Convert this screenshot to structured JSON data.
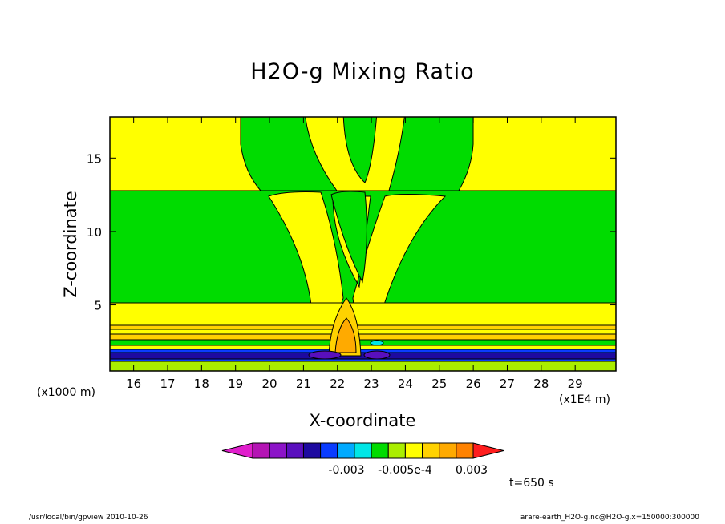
{
  "chart_data": {
    "type": "heatmap",
    "title": "H2O-g Mixing Ratio",
    "xlabel": "X-coordinate",
    "ylabel": "Z-coordinate",
    "x_unit": "(x1E4 m)",
    "y_unit": "(x1000 m)",
    "xlim": [
      15.3,
      30.2
    ],
    "ylim": [
      0.5,
      17.8
    ],
    "x_ticks": [
      16,
      17,
      18,
      19,
      20,
      21,
      22,
      23,
      24,
      25,
      26,
      27,
      28,
      29
    ],
    "y_ticks": [
      5,
      10,
      15
    ],
    "colorbar": {
      "colors": [
        "#e01fcc",
        "#b414b4",
        "#8c14c8",
        "#5a0fbe",
        "#1e0aa0",
        "#0a3cff",
        "#00aaff",
        "#00e6e6",
        "#00dc00",
        "#aaee00",
        "#ffff00",
        "#ffd200",
        "#ffaa00",
        "#ff8200",
        "#ff1e1e"
      ],
      "labels": [
        "-0.003",
        "-0.005e-4",
        "0.003"
      ]
    },
    "time": "t=650 s"
  },
  "footer": {
    "left": "/usr/local/bin/gpview  2010-10-26",
    "right": "arare-earth_H2O-g.nc@H2O-g,x=150000:300000"
  }
}
